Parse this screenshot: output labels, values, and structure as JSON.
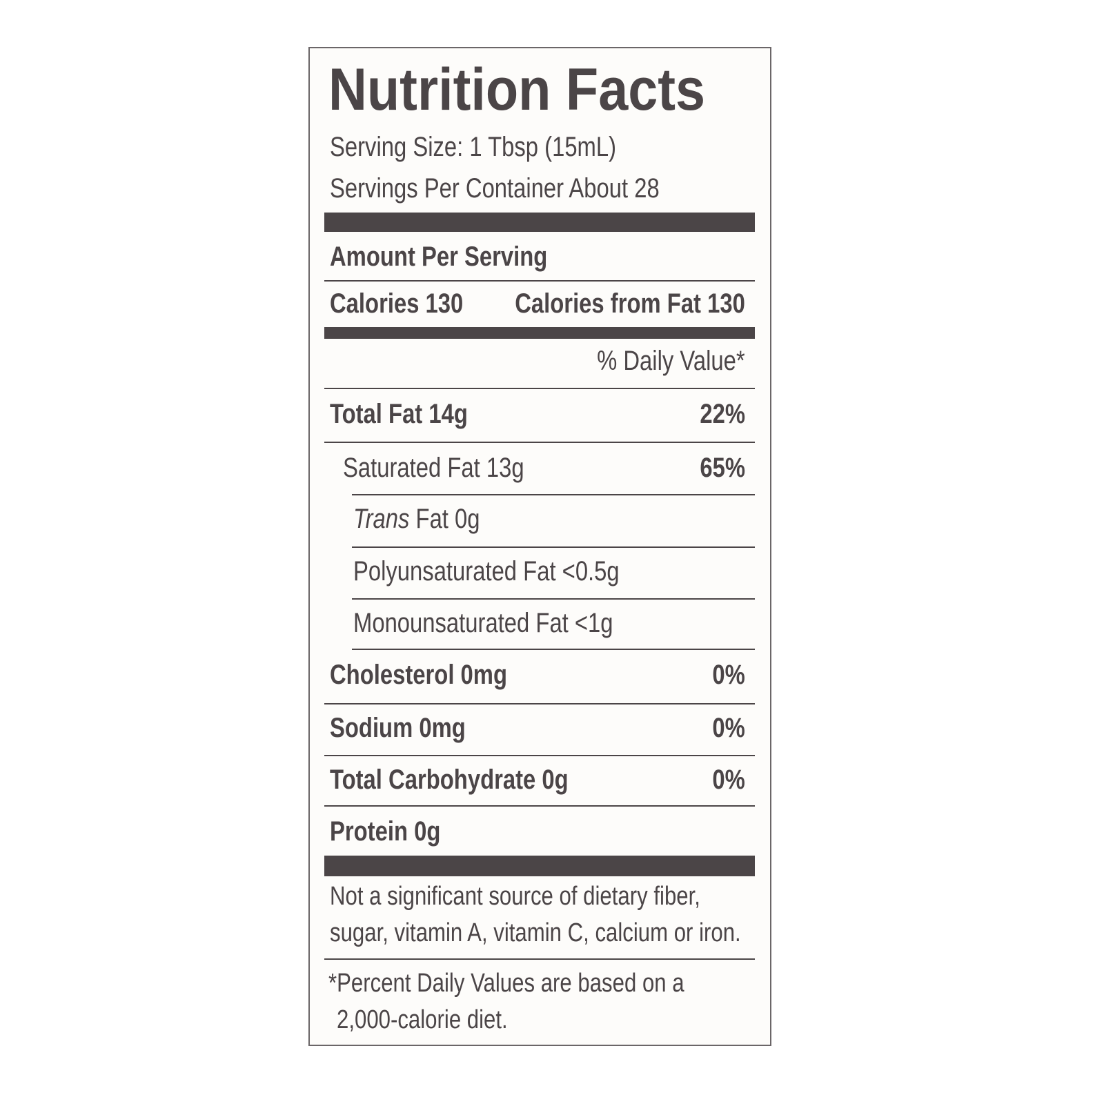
{
  "title": "Nutrition Facts",
  "serving_size": "Serving Size: 1 Tbsp (15mL)",
  "servings_per_container": "Servings Per Container About 28",
  "amount_per_serving": "Amount Per Serving",
  "calories": "Calories 130",
  "calories_from_fat": "Calories from Fat 130",
  "daily_value_header": "% Daily Value*",
  "rows": [
    {
      "label": "Total Fat 14g",
      "dv": "22%"
    },
    {
      "label": "Saturated Fat 13g",
      "dv": "65%"
    },
    {
      "prefix": "Trans",
      "label": "Fat 0g"
    },
    {
      "label": "Polyunsaturated Fat <0.5g"
    },
    {
      "label": "Monounsaturated Fat <1g"
    },
    {
      "label": "Cholesterol 0mg",
      "dv": "0%"
    },
    {
      "label": "Sodium 0mg",
      "dv": "0%"
    },
    {
      "label": "Total Carbohydrate 0g",
      "dv": "0%"
    },
    {
      "label": "Protein 0g"
    }
  ],
  "footnote": [
    "Not a significant source of dietary fiber,",
    "sugar, vitamin A, vitamin C, calcium or iron."
  ],
  "percent_note": [
    "*Percent Daily Values are based on a",
    "2,000-calorie diet."
  ]
}
